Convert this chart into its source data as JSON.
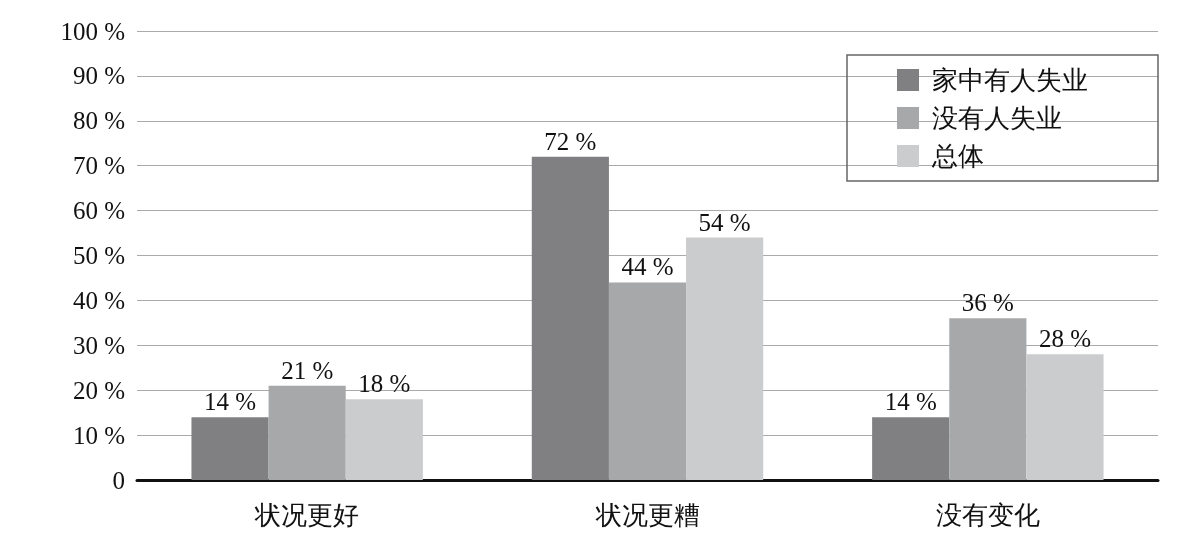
{
  "chart_data": {
    "type": "bar",
    "categories": [
      "状况更好",
      "状况更糟",
      "没有变化"
    ],
    "series": [
      {
        "name": "家中有人失业",
        "color": "#808083",
        "values": [
          14,
          72,
          14
        ],
        "value_labels": [
          "14 %",
          "72 %",
          "14 %"
        ]
      },
      {
        "name": "没有人失业",
        "color": "#a7a8aa",
        "values": [
          21,
          44,
          36
        ],
        "value_labels": [
          "21 %",
          "44 %",
          "36 %"
        ]
      },
      {
        "name": "总体",
        "color": "#cbcccd",
        "values": [
          18,
          54,
          28
        ],
        "value_labels": [
          "18 %",
          "54 %",
          "28 %"
        ]
      }
    ],
    "ylim": [
      0,
      100
    ],
    "yticks": [
      {
        "value": 0,
        "label": "0"
      },
      {
        "value": 10,
        "label": "10 %"
      },
      {
        "value": 20,
        "label": "20 %"
      },
      {
        "value": 30,
        "label": "30 %"
      },
      {
        "value": 40,
        "label": "40 %"
      },
      {
        "value": 50,
        "label": "50 %"
      },
      {
        "value": 60,
        "label": "60 %"
      },
      {
        "value": 70,
        "label": "70 %"
      },
      {
        "value": 80,
        "label": "80 %"
      },
      {
        "value": 90,
        "label": "90 %"
      },
      {
        "value": 100,
        "label": "100 %"
      }
    ],
    "grid": "y",
    "legend": "top right"
  }
}
